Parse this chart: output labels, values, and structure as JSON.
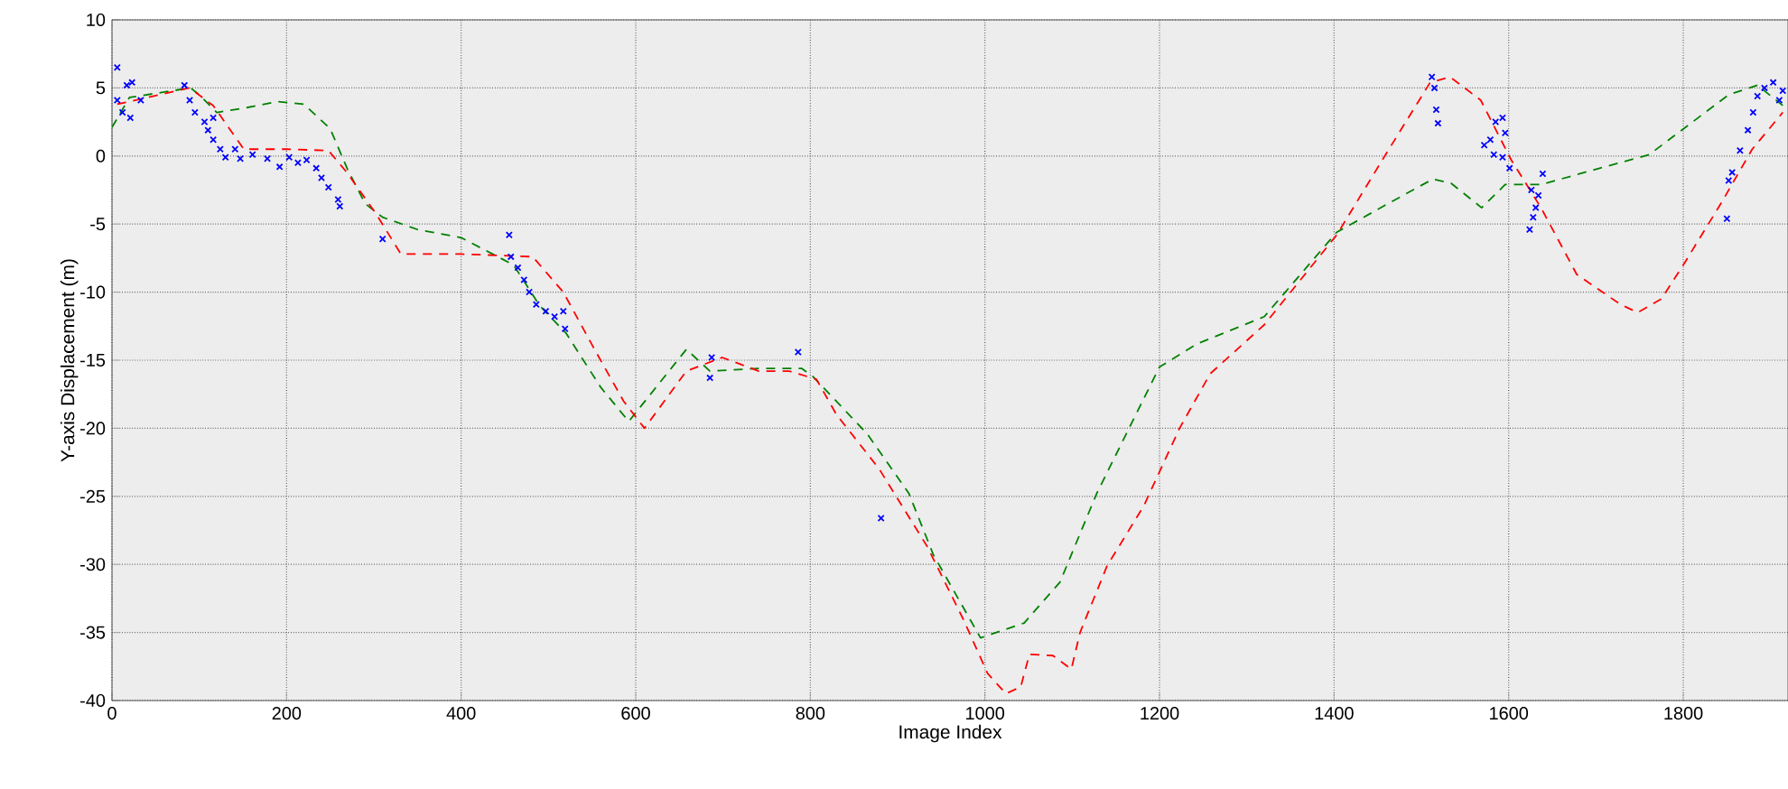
{
  "chart_data": {
    "type": "line",
    "xlabel": "Image Index",
    "ylabel": "Y-axis Displacement (m)",
    "xlim": [
      0,
      1920
    ],
    "ylim": [
      -40,
      10
    ],
    "xticks": [
      0,
      200,
      400,
      600,
      800,
      1000,
      1200,
      1400,
      1600,
      1800
    ],
    "yticks": [
      -40,
      -35,
      -30,
      -25,
      -20,
      -15,
      -10,
      -5,
      0,
      5,
      10
    ],
    "grid": true,
    "series": [
      {
        "type": "line",
        "color": "#008000",
        "line_style": "dashed",
        "marker": "none",
        "x": [
          0,
          20,
          60,
          90,
          100,
          120,
          150,
          190,
          220,
          250,
          270,
          290,
          310,
          350,
          400,
          430,
          460,
          490,
          520,
          560,
          592,
          658,
          685,
          741,
          790,
          803,
          865,
          913,
          941,
          995,
          1045,
          1086,
          1128,
          1169,
          1200,
          1243,
          1320,
          1403,
          1459,
          1513,
          1534,
          1569,
          1596,
          1637,
          1693,
          1761,
          1852,
          1885,
          1920
        ],
        "values": [
          2.1,
          4.3,
          4.7,
          5.0,
          4.5,
          3.2,
          3.5,
          4.0,
          3.8,
          2.0,
          -1.0,
          -3.5,
          -4.5,
          -5.4,
          -6.0,
          -7.0,
          -8.0,
          -11.0,
          -13.0,
          -17.0,
          -19.5,
          -14.2,
          -15.8,
          -15.6,
          -15.6,
          -16.2,
          -20.4,
          -24.8,
          -29.3,
          -35.4,
          -34.3,
          -31.3,
          -24.8,
          -19.5,
          -15.5,
          -13.8,
          -11.8,
          -5.6,
          -3.6,
          -1.7,
          -2.0,
          -3.8,
          -2.1,
          -2.1,
          -1.1,
          0.1,
          4.5,
          5.2,
          3.4
        ]
      },
      {
        "type": "line",
        "color": "#ff0000",
        "line_style": "dashed",
        "marker": "none",
        "x": [
          6,
          89,
          116,
          151,
          199,
          248,
          269,
          302,
          331,
          399,
          482,
          517,
          551,
          586,
          610,
          658,
          699,
          741,
          776,
          807,
          830,
          879,
          934,
          975,
          1003,
          1024,
          1041,
          1051,
          1078,
          1099,
          1109,
          1140,
          1182,
          1223,
          1258,
          1320,
          1403,
          1459,
          1510,
          1533,
          1568,
          1603,
          1637,
          1678,
          1728,
          1748,
          1775,
          1802,
          1844,
          1879,
          1914
        ],
        "values": [
          3.8,
          5.0,
          3.7,
          0.5,
          0.5,
          0.4,
          -1.2,
          -4.2,
          -7.2,
          -7.2,
          -7.4,
          -10.0,
          -14.0,
          -18.0,
          -20.0,
          -15.8,
          -14.8,
          -15.8,
          -15.8,
          -16.4,
          -19.0,
          -23.0,
          -28.7,
          -34.0,
          -38.0,
          -39.5,
          -39.0,
          -36.6,
          -36.7,
          -37.7,
          -35.0,
          -30.1,
          -25.7,
          -20.0,
          -16.0,
          -12.4,
          -5.8,
          0.1,
          5.4,
          5.8,
          4.1,
          -0.3,
          -3.8,
          -8.7,
          -10.9,
          -11.5,
          -10.5,
          -7.8,
          -3.4,
          0.5,
          3.2
        ]
      },
      {
        "type": "scatter",
        "color": "#0000ff",
        "marker": "cross",
        "x": [
          6,
          6,
          12,
          17,
          21,
          23,
          33,
          83,
          89,
          95,
          106,
          116,
          110,
          116,
          124,
          130,
          141,
          147,
          161,
          178,
          192,
          203,
          213,
          223,
          234,
          240,
          248,
          259,
          261,
          310,
          455,
          457,
          465,
          472,
          478,
          486,
          497,
          507,
          517,
          519,
          687,
          685,
          786,
          881,
          1512,
          1515,
          1517,
          1519,
          1572,
          1579,
          1583,
          1585,
          1593,
          1596,
          1593,
          1601,
          1626,
          1634,
          1639,
          1628,
          1624,
          1631,
          1850,
          1852,
          1856,
          1865,
          1874,
          1880,
          1885,
          1893,
          1903,
          1910,
          1914
        ],
        "values": [
          6.5,
          4.1,
          3.2,
          5.2,
          2.8,
          5.4,
          4.1,
          5.2,
          4.1,
          3.2,
          2.5,
          2.8,
          1.9,
          1.2,
          0.5,
          -0.1,
          0.5,
          -0.2,
          0.1,
          -0.2,
          -0.8,
          -0.1,
          -0.5,
          -0.3,
          -0.9,
          -1.6,
          -2.3,
          -3.2,
          -3.7,
          -6.1,
          -5.8,
          -7.4,
          -8.2,
          -9.1,
          -10.0,
          -10.9,
          -11.4,
          -11.8,
          -11.4,
          -12.7,
          -14.8,
          -16.3,
          -14.4,
          -26.6,
          5.8,
          5.0,
          3.4,
          2.4,
          0.8,
          1.2,
          0.1,
          2.5,
          2.8,
          1.7,
          -0.1,
          -0.9,
          -2.5,
          -2.9,
          -1.3,
          -4.5,
          -5.4,
          -3.8,
          -4.6,
          -1.8,
          -1.2,
          0.4,
          1.9,
          3.2,
          4.4,
          5.0,
          5.4,
          4.1,
          4.8
        ]
      }
    ]
  }
}
